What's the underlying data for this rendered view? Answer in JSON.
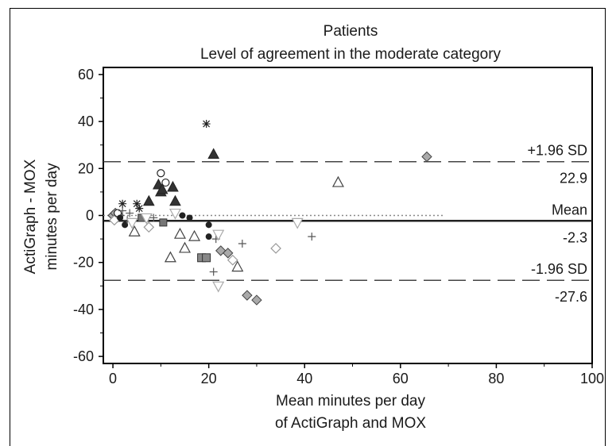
{
  "chart_data": {
    "type": "scatter",
    "title": "Patients",
    "subtitle": "Level of agreement in the moderate category",
    "xlabel_lines": [
      "Mean minutes per day",
      "of ActiGraph and MOX"
    ],
    "ylabel_lines": [
      "ActiGraph - MOX",
      "minutes per day"
    ],
    "xlim": [
      -2,
      100
    ],
    "ylim": [
      -63,
      63
    ],
    "x_ticks": [
      0,
      20,
      40,
      60,
      80,
      100
    ],
    "y_ticks": [
      60,
      40,
      20,
      0,
      -20,
      -40,
      -60
    ],
    "grid": false,
    "reference_lines": [
      {
        "name": "+1.96 SD",
        "value": 22.9,
        "value_label": "22.9",
        "style": "dashed"
      },
      {
        "name": "Mean",
        "value": -2.3,
        "value_label": "-2.3",
        "style": "solid"
      },
      {
        "name": "-1.96 SD",
        "value": -27.6,
        "value_label": "-27.6",
        "style": "dashed"
      }
    ],
    "zero_line": {
      "value": 0,
      "x_end": 69,
      "style": "dotted"
    },
    "points": [
      {
        "x": 0,
        "y": 0,
        "marker": "diamond-gray"
      },
      {
        "x": 0.5,
        "y": 1,
        "marker": "diamond-gray"
      },
      {
        "x": 0.8,
        "y": -1,
        "marker": "diamond-gray"
      },
      {
        "x": 1.2,
        "y": 0,
        "marker": "diamond-gray"
      },
      {
        "x": 0.3,
        "y": -2,
        "marker": "diamond-open"
      },
      {
        "x": 1,
        "y": 1,
        "marker": "circle-open"
      },
      {
        "x": 1.5,
        "y": -1,
        "marker": "circle-filled"
      },
      {
        "x": 2,
        "y": 2,
        "marker": "plus"
      },
      {
        "x": 2,
        "y": 5,
        "marker": "asterisk"
      },
      {
        "x": 2.5,
        "y": -4,
        "marker": "circle-filled"
      },
      {
        "x": 3,
        "y": -2,
        "marker": "plus"
      },
      {
        "x": 3.5,
        "y": 1,
        "marker": "plus"
      },
      {
        "x": 4,
        "y": -3,
        "marker": "triangle-down-open"
      },
      {
        "x": 4.5,
        "y": -7,
        "marker": "triangle-open"
      },
      {
        "x": 5,
        "y": 5,
        "marker": "asterisk"
      },
      {
        "x": 5.5,
        "y": 3,
        "marker": "asterisk"
      },
      {
        "x": 6,
        "y": -1,
        "marker": "square-filled"
      },
      {
        "x": 7,
        "y": -1,
        "marker": "triangle-down-open"
      },
      {
        "x": 7.5,
        "y": 6,
        "marker": "triangle-filled"
      },
      {
        "x": 7.5,
        "y": -5,
        "marker": "diamond-open"
      },
      {
        "x": 8.5,
        "y": -1,
        "marker": "plus"
      },
      {
        "x": 9.5,
        "y": 13,
        "marker": "triangle-filled"
      },
      {
        "x": 10,
        "y": 10,
        "marker": "triangle-filled"
      },
      {
        "x": 10.3,
        "y": 11,
        "marker": "triangle-filled"
      },
      {
        "x": 10,
        "y": 18,
        "marker": "circle-open"
      },
      {
        "x": 10.5,
        "y": -3,
        "marker": "square-filled"
      },
      {
        "x": 11,
        "y": 14,
        "marker": "circle-open"
      },
      {
        "x": 12,
        "y": -18,
        "marker": "triangle-open"
      },
      {
        "x": 12.5,
        "y": 12,
        "marker": "triangle-filled"
      },
      {
        "x": 13,
        "y": 6,
        "marker": "triangle-filled"
      },
      {
        "x": 13,
        "y": 1,
        "marker": "triangle-down-open"
      },
      {
        "x": 14,
        "y": -8,
        "marker": "triangle-open"
      },
      {
        "x": 14.5,
        "y": 0,
        "marker": "circle-filled"
      },
      {
        "x": 15,
        "y": -14,
        "marker": "triangle-open"
      },
      {
        "x": 16,
        "y": -1,
        "marker": "circle-filled"
      },
      {
        "x": 17,
        "y": -9,
        "marker": "triangle-open"
      },
      {
        "x": 18.5,
        "y": -18,
        "marker": "square-gray"
      },
      {
        "x": 19.5,
        "y": -18,
        "marker": "square-gray"
      },
      {
        "x": 19.5,
        "y": 39,
        "marker": "asterisk"
      },
      {
        "x": 20,
        "y": -4,
        "marker": "circle-filled"
      },
      {
        "x": 20,
        "y": -9,
        "marker": "circle-filled"
      },
      {
        "x": 21,
        "y": -24,
        "marker": "plus"
      },
      {
        "x": 21,
        "y": 26,
        "marker": "triangle-filled"
      },
      {
        "x": 21.5,
        "y": -10,
        "marker": "plus"
      },
      {
        "x": 22,
        "y": -8,
        "marker": "triangle-down-open"
      },
      {
        "x": 22,
        "y": -30,
        "marker": "triangle-down-open"
      },
      {
        "x": 22.5,
        "y": -15,
        "marker": "diamond-gray"
      },
      {
        "x": 24,
        "y": -16,
        "marker": "diamond-gray"
      },
      {
        "x": 25,
        "y": -19,
        "marker": "diamond-open"
      },
      {
        "x": 26,
        "y": -22,
        "marker": "triangle-open"
      },
      {
        "x": 27,
        "y": -12,
        "marker": "plus"
      },
      {
        "x": 28,
        "y": -34,
        "marker": "diamond-gray"
      },
      {
        "x": 30,
        "y": -36,
        "marker": "diamond-gray"
      },
      {
        "x": 34,
        "y": -14,
        "marker": "diamond-open"
      },
      {
        "x": 38.5,
        "y": -3,
        "marker": "triangle-down-open"
      },
      {
        "x": 41.5,
        "y": -9,
        "marker": "plus"
      },
      {
        "x": 47,
        "y": 14,
        "marker": "triangle-open"
      },
      {
        "x": 65.5,
        "y": 25,
        "marker": "diamond-gray"
      }
    ]
  }
}
